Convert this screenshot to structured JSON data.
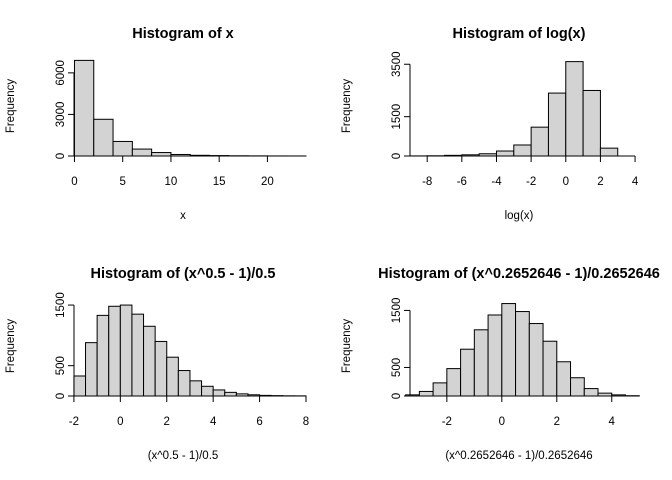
{
  "chart_data": [
    {
      "type": "bar",
      "title": "Histogram of x",
      "xlabel": "x",
      "ylabel": "Frequency",
      "bin_edges": [
        0,
        2,
        4,
        6,
        8,
        10,
        12,
        14,
        16,
        18,
        20,
        22,
        24
      ],
      "values": [
        6900,
        2650,
        1050,
        500,
        250,
        110,
        50,
        30,
        15,
        8,
        4,
        2
      ],
      "xticks": [
        0,
        5,
        10,
        15,
        20
      ],
      "yticks": [
        0,
        3000,
        6000
      ],
      "ylim": [
        0,
        7000
      ]
    },
    {
      "type": "bar",
      "title": "Histogram of log(x)",
      "xlabel": "log(x)",
      "ylabel": "Frequency",
      "bin_edges": [
        -9,
        -8,
        -7,
        -6,
        -5,
        -4,
        -3,
        -2,
        -1,
        0,
        1,
        2,
        3
      ],
      "values": [
        3,
        8,
        25,
        45,
        85,
        190,
        420,
        1100,
        2400,
        3600,
        2500,
        300
      ],
      "xticks": [
        -8,
        -6,
        -4,
        -2,
        0,
        2,
        4
      ],
      "yticks": [
        0,
        1500,
        3500
      ],
      "ylim": [
        0,
        3700
      ]
    },
    {
      "type": "bar",
      "title": "Histogram of (x^0.5 - 1)/0.5",
      "xlabel": "(x^0.5 - 1)/0.5",
      "ylabel": "Frequency",
      "bin_edges": [
        -2,
        -1.5,
        -1,
        -0.5,
        0,
        0.5,
        1,
        1.5,
        2,
        2.5,
        3,
        3.5,
        4,
        4.5,
        5,
        5.5,
        6,
        6.5,
        7,
        7.5,
        8
      ],
      "values": [
        330,
        880,
        1330,
        1480,
        1500,
        1350,
        1150,
        900,
        640,
        420,
        250,
        160,
        100,
        60,
        35,
        20,
        10,
        6,
        3,
        2
      ],
      "xticks": [
        -2,
        0,
        2,
        4,
        6,
        8
      ],
      "yticks": [
        0,
        500,
        1500
      ],
      "ylim": [
        0,
        1600
      ]
    },
    {
      "type": "bar",
      "title": "Histogram of (x^0.2652646 - 1)/0.2652646",
      "xlabel": "(x^0.2652646 - 1)/0.2652646",
      "ylabel": "Frequency",
      "bin_edges": [
        -3.5,
        -3,
        -2.5,
        -2,
        -1.5,
        -1,
        -0.5,
        0,
        0.5,
        1,
        1.5,
        2,
        2.5,
        3,
        3.5,
        4,
        4.5,
        5
      ],
      "values": [
        20,
        80,
        230,
        480,
        820,
        1160,
        1420,
        1620,
        1480,
        1270,
        960,
        600,
        320,
        130,
        50,
        20,
        5
      ],
      "xticks": [
        -2,
        0,
        2,
        4
      ],
      "yticks": [
        0,
        500,
        1500
      ],
      "ylim": [
        0,
        1700
      ]
    }
  ]
}
